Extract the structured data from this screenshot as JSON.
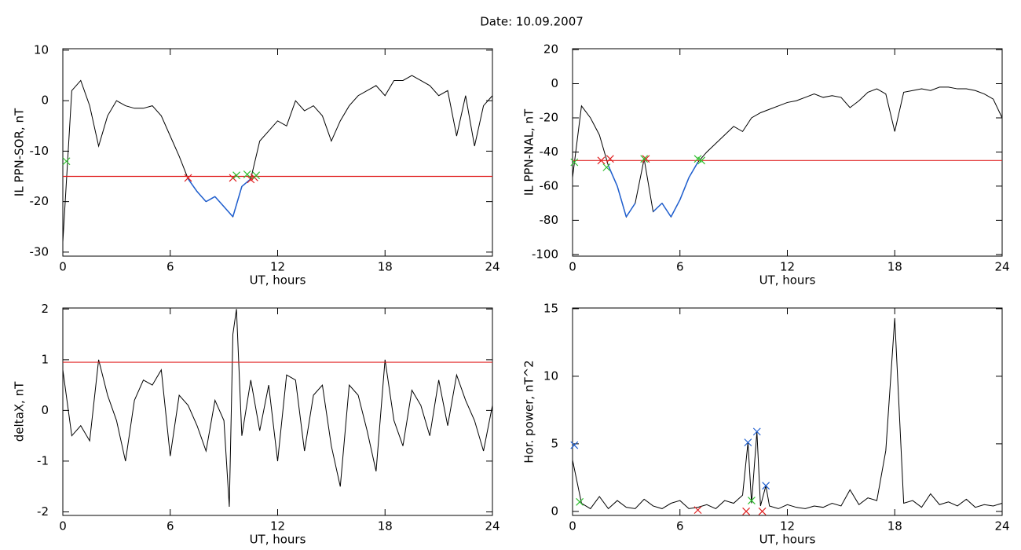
{
  "title": "Date:  10.09.2007",
  "chart_data": [
    {
      "type": "line",
      "ylabel": "IL PPN-SOR, nT",
      "xlabel": "UT, hours",
      "xlim": [
        0,
        24
      ],
      "xticks": [
        0,
        6,
        12,
        18,
        24
      ],
      "ylim": [
        -30.8,
        10.3
      ],
      "yticks": [
        -30,
        -20,
        -10,
        0,
        10
      ],
      "x": [
        0,
        0.5,
        1,
        1.5,
        2,
        2.5,
        3,
        3.5,
        4,
        4.5,
        5,
        5.5,
        6,
        6.5,
        7,
        7.5,
        8,
        8.5,
        9,
        9.5,
        10,
        10.5,
        11,
        11.5,
        12,
        12.5,
        13,
        13.5,
        14,
        14.5,
        15,
        15.5,
        16,
        16.5,
        17,
        17.5,
        18,
        18.5,
        19,
        19.5,
        20,
        20.5,
        21,
        21.5,
        22,
        22.5,
        23,
        23.5,
        24
      ],
      "series": [
        {
          "color": "#000000",
          "values": [
            -28,
            2,
            4,
            -1,
            -9,
            -3,
            0,
            -1,
            -1.5,
            -1.5,
            -1,
            -3,
            -7,
            -11,
            -15.5,
            -18,
            -20,
            -19,
            -21,
            -23,
            -17,
            -15.5,
            -8,
            -6,
            -4,
            -5,
            0,
            -2,
            -1,
            -3,
            -8,
            -4,
            -1,
            1,
            2,
            3,
            1,
            4,
            4,
            5,
            4,
            3,
            1,
            2,
            -7,
            1,
            -9,
            -1,
            1
          ]
        }
      ],
      "highlight_below": {
        "value": -15,
        "color": "#1f5fd0"
      },
      "hline": {
        "value": -15,
        "color": "#e02020"
      },
      "markers": [
        {
          "x": 7,
          "y": -15.3,
          "color": "#e02020"
        },
        {
          "x": 9.5,
          "y": -15.3,
          "color": "#e02020"
        },
        {
          "x": 10.5,
          "y": -15.6,
          "color": "#e02020"
        },
        {
          "x": 10.7,
          "y": -15.2,
          "color": "#e02020"
        },
        {
          "x": 0.2,
          "y": -12,
          "color": "#30c030"
        },
        {
          "x": 9.7,
          "y": -14.8,
          "color": "#30c030"
        },
        {
          "x": 10.3,
          "y": -14.6,
          "color": "#30c030"
        },
        {
          "x": 10.8,
          "y": -14.8,
          "color": "#30c030"
        }
      ]
    },
    {
      "type": "line",
      "ylabel": "IL PPN-NAL, nT",
      "xlabel": "UT, hours",
      "xlim": [
        0,
        24
      ],
      "xticks": [
        0,
        6,
        12,
        18,
        24
      ],
      "ylim": [
        -101,
        20.5
      ],
      "yticks": [
        -100,
        -80,
        -60,
        -40,
        -20,
        0,
        20
      ],
      "x": [
        0,
        0.5,
        1,
        1.5,
        2,
        2.5,
        3,
        3.5,
        4,
        4.5,
        5,
        5.5,
        6,
        6.5,
        7,
        7.5,
        8,
        8.5,
        9,
        9.5,
        10,
        10.5,
        11,
        11.5,
        12,
        12.5,
        13,
        13.5,
        14,
        14.5,
        15,
        15.5,
        16,
        16.5,
        17,
        17.5,
        18,
        18.5,
        19,
        19.5,
        20,
        20.5,
        21,
        21.5,
        22,
        22.5,
        23,
        23.5,
        24
      ],
      "series": [
        {
          "color": "#000000",
          "values": [
            -55,
            -13,
            -20,
            -30,
            -48,
            -60,
            -78,
            -70,
            -44,
            -75,
            -70,
            -78,
            -68,
            -55,
            -46,
            -40,
            -35,
            -30,
            -25,
            -28,
            -20,
            -17,
            -15,
            -13,
            -11,
            -10,
            -8,
            -6,
            -8,
            -7,
            -8,
            -14,
            -10,
            -5,
            -3,
            -6,
            -28,
            -5,
            -4,
            -3,
            -4,
            -2,
            -2,
            -3,
            -3,
            -4,
            -6,
            -9,
            -20
          ]
        }
      ],
      "highlight_below": {
        "value": -45,
        "color": "#1f5fd0"
      },
      "hline": {
        "value": -45,
        "color": "#e02020"
      },
      "markers": [
        {
          "x": 1.6,
          "y": -45,
          "color": "#e02020"
        },
        {
          "x": 2.1,
          "y": -44,
          "color": "#e02020"
        },
        {
          "x": 4.1,
          "y": -44,
          "color": "#e02020"
        },
        {
          "x": 0.1,
          "y": -46,
          "color": "#30c030"
        },
        {
          "x": 1.9,
          "y": -49,
          "color": "#30c030"
        },
        {
          "x": 4.0,
          "y": -44,
          "color": "#30c030"
        },
        {
          "x": 7.0,
          "y": -44,
          "color": "#30c030"
        },
        {
          "x": 7.2,
          "y": -45,
          "color": "#30c030"
        }
      ]
    },
    {
      "type": "line",
      "ylabel": "deltaX, nT",
      "xlabel": "UT, hours",
      "xlim": [
        0,
        24
      ],
      "xticks": [
        0,
        6,
        12,
        18,
        24
      ],
      "ylim": [
        -2.07,
        2.02
      ],
      "yticks": [
        -2,
        -1,
        0,
        1,
        2
      ],
      "x": [
        0,
        0.5,
        1,
        1.5,
        2,
        2.5,
        3,
        3.5,
        4,
        4.5,
        5,
        5.5,
        6,
        6.5,
        7,
        7.5,
        8,
        8.5,
        9,
        9.3,
        9.5,
        9.7,
        10,
        10.5,
        11,
        11.5,
        12,
        12.5,
        13,
        13.5,
        14,
        14.5,
        15,
        15.5,
        16,
        16.5,
        17,
        17.5,
        18,
        18.5,
        19,
        19.5,
        20,
        20.5,
        21,
        21.5,
        22,
        22.5,
        23,
        23.5,
        24
      ],
      "series": [
        {
          "color": "#000000",
          "values": [
            0.8,
            -0.5,
            -0.3,
            -0.6,
            1.0,
            0.3,
            -0.2,
            -1.0,
            0.2,
            0.6,
            0.5,
            0.8,
            -0.9,
            0.3,
            0.1,
            -0.3,
            -0.8,
            0.2,
            -0.2,
            -1.9,
            1.5,
            2.0,
            -0.5,
            0.6,
            -0.4,
            0.5,
            -1.0,
            0.7,
            0.6,
            -0.8,
            0.3,
            0.5,
            -0.7,
            -1.5,
            0.5,
            0.3,
            -0.4,
            -1.2,
            1.0,
            -0.2,
            -0.7,
            0.4,
            0.1,
            -0.5,
            0.6,
            -0.3,
            0.7,
            0.2,
            -0.2,
            -0.8,
            0.1
          ]
        }
      ],
      "hline": {
        "value": 0.95,
        "color": "#e02020"
      },
      "markers": []
    },
    {
      "type": "line",
      "ylabel": "Hor. power, nT^2",
      "xlabel": "UT, hours",
      "xlim": [
        0,
        24
      ],
      "xticks": [
        0,
        6,
        12,
        18,
        24
      ],
      "ylim": [
        -0.3,
        15.05
      ],
      "yticks": [
        0,
        5,
        10,
        15
      ],
      "x": [
        0,
        0.5,
        1,
        1.5,
        2,
        2.5,
        3,
        3.5,
        4,
        4.5,
        5,
        5.5,
        6,
        6.5,
        7,
        7.5,
        8,
        8.5,
        9,
        9.5,
        9.8,
        10,
        10.3,
        10.5,
        10.8,
        11,
        11.5,
        12,
        12.5,
        13,
        13.5,
        14,
        14.5,
        15,
        15.5,
        16,
        16.5,
        17,
        17.5,
        18,
        18.5,
        19,
        19.5,
        20,
        20.5,
        21,
        21.5,
        22,
        22.5,
        23,
        23.5,
        24
      ],
      "series": [
        {
          "color": "#000000",
          "values": [
            3.8,
            0.6,
            0.2,
            1.1,
            0.2,
            0.8,
            0.3,
            0.2,
            0.9,
            0.4,
            0.2,
            0.6,
            0.8,
            0.2,
            0.3,
            0.5,
            0.2,
            0.8,
            0.6,
            1.2,
            5.1,
            0.6,
            5.9,
            0.4,
            1.9,
            0.4,
            0.2,
            0.5,
            0.3,
            0.2,
            0.4,
            0.3,
            0.6,
            0.4,
            1.6,
            0.5,
            1.0,
            0.8,
            4.5,
            14.3,
            0.6,
            0.8,
            0.3,
            1.3,
            0.5,
            0.7,
            0.4,
            0.9,
            0.3,
            0.5,
            0.4,
            0.6
          ]
        }
      ],
      "markers": [
        {
          "x": 0.1,
          "y": 4.9,
          "color": "#1f5fd0"
        },
        {
          "x": 9.8,
          "y": 5.1,
          "color": "#1f5fd0"
        },
        {
          "x": 10.3,
          "y": 5.9,
          "color": "#1f5fd0"
        },
        {
          "x": 10.8,
          "y": 1.9,
          "color": "#1f5fd0"
        },
        {
          "x": 0.4,
          "y": 0.7,
          "color": "#30c030"
        },
        {
          "x": 10.0,
          "y": 0.8,
          "color": "#30c030"
        },
        {
          "x": 7.0,
          "y": 0.1,
          "color": "#e02020"
        },
        {
          "x": 9.7,
          "y": 0.0,
          "color": "#e02020"
        },
        {
          "x": 10.6,
          "y": 0.0,
          "color": "#e02020"
        }
      ]
    }
  ]
}
